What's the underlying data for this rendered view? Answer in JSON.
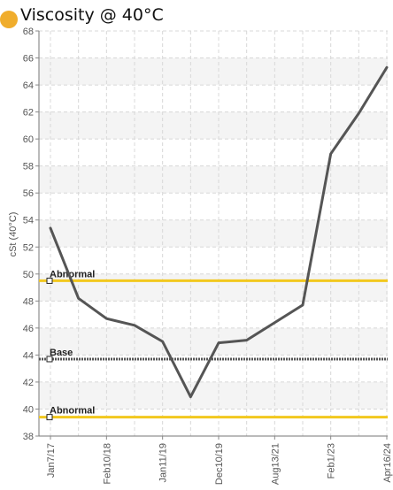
{
  "header": {
    "title": "Viscosity @ 40°C",
    "status_color": "#F0AD2C"
  },
  "chart_data": {
    "type": "line",
    "title": "Viscosity @ 40°C",
    "xlabel": "",
    "ylabel": "cSt (40°C)",
    "ylim": [
      38,
      68
    ],
    "yticks": [
      38,
      40,
      42,
      44,
      46,
      48,
      50,
      52,
      54,
      56,
      58,
      60,
      62,
      64,
      66,
      68
    ],
    "grid": true,
    "x": [
      "Jan7/17",
      "",
      "Feb10/18",
      "",
      "Jan11/19",
      "",
      "Dec10/19",
      "",
      "Aug13/21",
      "",
      "Feb1/23",
      "",
      "Apr16/24"
    ],
    "xtick_labels": [
      "Jan7/17",
      "Feb10/18",
      "Jan11/19",
      "Dec10/19",
      "Aug13/21",
      "Feb1/23",
      "Apr16/24"
    ],
    "series": [
      {
        "values": [
          53.4,
          48.2,
          46.7,
          46.2,
          45.0,
          40.9,
          44.9,
          45.1,
          46.4,
          47.7,
          58.9,
          61.9,
          65.3
        ],
        "color": "#555555"
      }
    ],
    "reference_lines": [
      {
        "label": "Abnormal",
        "value": 49.5,
        "color": "#F2C81E",
        "style": "solid"
      },
      {
        "label": "Base",
        "value": 43.7,
        "color": "#555555",
        "style": "dotted"
      },
      {
        "label": "Abnormal",
        "value": 39.4,
        "color": "#F2C81E",
        "style": "solid"
      }
    ]
  }
}
